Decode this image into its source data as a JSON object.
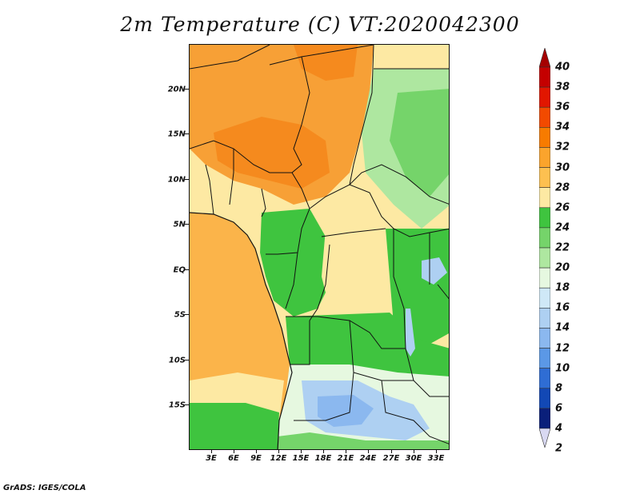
{
  "title": "2m Temperature (C) VT:2020042300",
  "footer": "GrADS: IGES/COLA",
  "lat_labels": [
    "20N",
    "15N",
    "10N",
    "5N",
    "EQ",
    "5S",
    "10S",
    "15S"
  ],
  "lon_labels": [
    "3E",
    "6E",
    "9E",
    "12E",
    "15E",
    "18E",
    "21E",
    "24E",
    "27E",
    "30E",
    "33E"
  ],
  "colorbar": {
    "labels": [
      "40",
      "38",
      "36",
      "34",
      "32",
      "30",
      "28",
      "26",
      "24",
      "22",
      "20",
      "18",
      "16",
      "14",
      "12",
      "10",
      "8",
      "6",
      "4",
      "2"
    ],
    "colors": [
      "#a50000",
      "#c40000",
      "#e11600",
      "#f24a00",
      "#f77b00",
      "#fba42c",
      "#fdc050",
      "#fde9a3",
      "#3fc43f",
      "#75d46a",
      "#aee7a0",
      "#e6f8e0",
      "#cfe8f7",
      "#aed0f2",
      "#8bb8ef",
      "#5b98e6",
      "#2f6dd4",
      "#1248b5",
      "#0a1f7a",
      "#d9d9f2"
    ]
  },
  "legend": {
    "units": "C",
    "variable": "2m Temperature"
  }
}
